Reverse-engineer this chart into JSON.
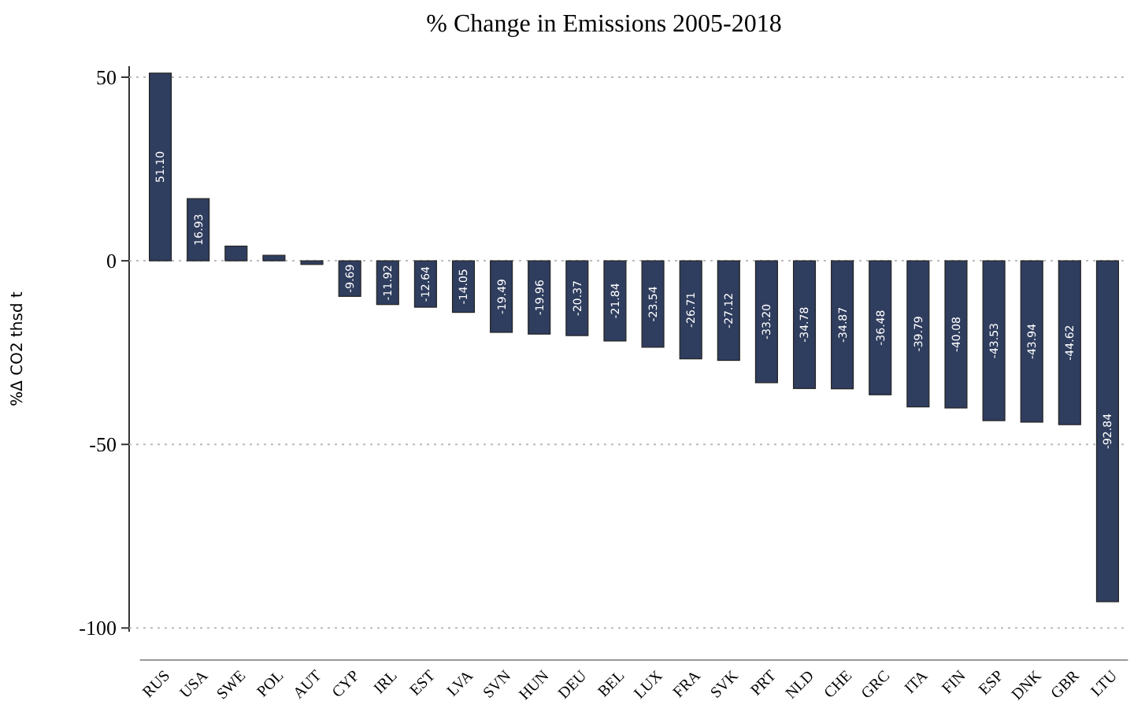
{
  "chart_data": {
    "type": "bar",
    "title": "% Change in Emissions 2005-2018",
    "ylabel": "%Δ CO2 thsd t",
    "categories": [
      "RUS",
      "USA",
      "SWE",
      "POL",
      "AUT",
      "CYP",
      "IRL",
      "EST",
      "LVA",
      "SVN",
      "HUN",
      "DEU",
      "BEL",
      "LUX",
      "FRA",
      "SVK",
      "PRT",
      "NLD",
      "CHE",
      "GRC",
      "ITA",
      "FIN",
      "ESP",
      "DNK",
      "GBR",
      "LTU"
    ],
    "values": [
      51.1,
      16.93,
      4,
      1.5,
      -1,
      -9.69,
      -11.92,
      -12.64,
      -14.05,
      -19.49,
      -19.96,
      -20.37,
      -21.84,
      -23.54,
      -26.71,
      -27.12,
      -33.2,
      -34.78,
      -34.87,
      -36.48,
      -39.79,
      -40.08,
      -43.53,
      -43.94,
      -44.62,
      -92.84
    ],
    "color": "#2f3d5e",
    "ylim": [
      -101,
      53
    ],
    "yticks": [
      -100,
      -50,
      0,
      50
    ],
    "grid": "y",
    "value_labels": [
      "51.10",
      "16.93",
      null,
      null,
      null,
      "-9.69",
      "-11.92",
      "-12.64",
      "-14.05",
      "-19.49",
      "-19.96",
      "-20.37",
      "-21.84",
      "-23.54",
      "-26.71",
      "-27.12",
      "-33.20",
      "-34.78",
      "-34.87",
      "-36.48",
      "-39.79",
      "-40.08",
      "-43.53",
      "-43.94",
      "-44.62",
      "-92.84"
    ]
  }
}
